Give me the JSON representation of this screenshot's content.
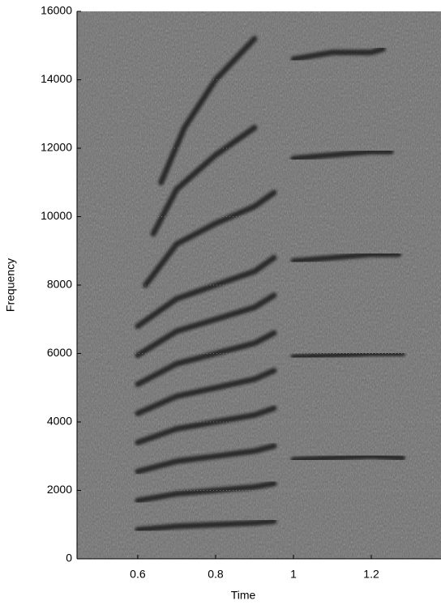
{
  "chart_data": {
    "type": "spectrogram",
    "x_label": "Time",
    "y_label": "Frequency",
    "xlim": [
      0.444,
      1.379
    ],
    "ylim": [
      0,
      16000
    ],
    "xticks": [
      0.6,
      0.8,
      1,
      1.2
    ],
    "yticks": [
      0,
      2000,
      4000,
      6000,
      8000,
      10000,
      12000,
      14000,
      16000
    ],
    "grid": true,
    "background_color": "#6b6b6b",
    "track_color": "#141414",
    "tracks": [
      {
        "x": [
          0.6,
          0.7,
          0.8,
          0.9,
          0.95
        ],
        "y": [
          850,
          950,
          1000,
          1050,
          1100
        ]
      },
      {
        "x": [
          0.6,
          0.7,
          0.8,
          0.9,
          0.95
        ],
        "y": [
          1700,
          1900,
          2000,
          2100,
          2200
        ]
      },
      {
        "x": [
          0.6,
          0.7,
          0.8,
          0.9,
          0.95
        ],
        "y": [
          2550,
          2850,
          3000,
          3150,
          3300
        ]
      },
      {
        "x": [
          0.6,
          0.7,
          0.8,
          0.9,
          0.95
        ],
        "y": [
          3400,
          3800,
          4000,
          4200,
          4400
        ]
      },
      {
        "x": [
          0.6,
          0.7,
          0.8,
          0.9,
          0.95
        ],
        "y": [
          4250,
          4750,
          5000,
          5250,
          5500
        ]
      },
      {
        "x": [
          0.6,
          0.7,
          0.8,
          0.9,
          0.95
        ],
        "y": [
          5100,
          5700,
          6000,
          6300,
          6600
        ]
      },
      {
        "x": [
          0.6,
          0.7,
          0.8,
          0.9,
          0.95
        ],
        "y": [
          5950,
          6650,
          7000,
          7350,
          7700
        ]
      },
      {
        "x": [
          0.6,
          0.7,
          0.8,
          0.9,
          0.95
        ],
        "y": [
          6800,
          7600,
          8000,
          8400,
          8800
        ]
      },
      {
        "x": [
          0.62,
          0.7,
          0.8,
          0.9,
          0.95
        ],
        "y": [
          8000,
          9200,
          9800,
          10300,
          10700
        ]
      },
      {
        "x": [
          0.64,
          0.7,
          0.8,
          0.9
        ],
        "y": [
          9500,
          10800,
          11800,
          12600
        ]
      },
      {
        "x": [
          0.66,
          0.72,
          0.8,
          0.9
        ],
        "y": [
          11000,
          12600,
          14000,
          15200
        ]
      },
      {
        "x": [
          1.0,
          1.1,
          1.2,
          1.28
        ],
        "y": [
          2900,
          2950,
          3000,
          2950
        ]
      },
      {
        "x": [
          1.0,
          1.1,
          1.2,
          1.28
        ],
        "y": [
          5900,
          5950,
          6000,
          6000
        ]
      },
      {
        "x": [
          1.0,
          1.1,
          1.2,
          1.27
        ],
        "y": [
          8700,
          8800,
          8900,
          8900
        ]
      },
      {
        "x": [
          1.0,
          1.1,
          1.2,
          1.25
        ],
        "y": [
          11700,
          11800,
          11900,
          11900
        ]
      },
      {
        "x": [
          1.0,
          1.1,
          1.2,
          1.23
        ],
        "y": [
          14600,
          14800,
          14800,
          14900
        ]
      }
    ]
  }
}
